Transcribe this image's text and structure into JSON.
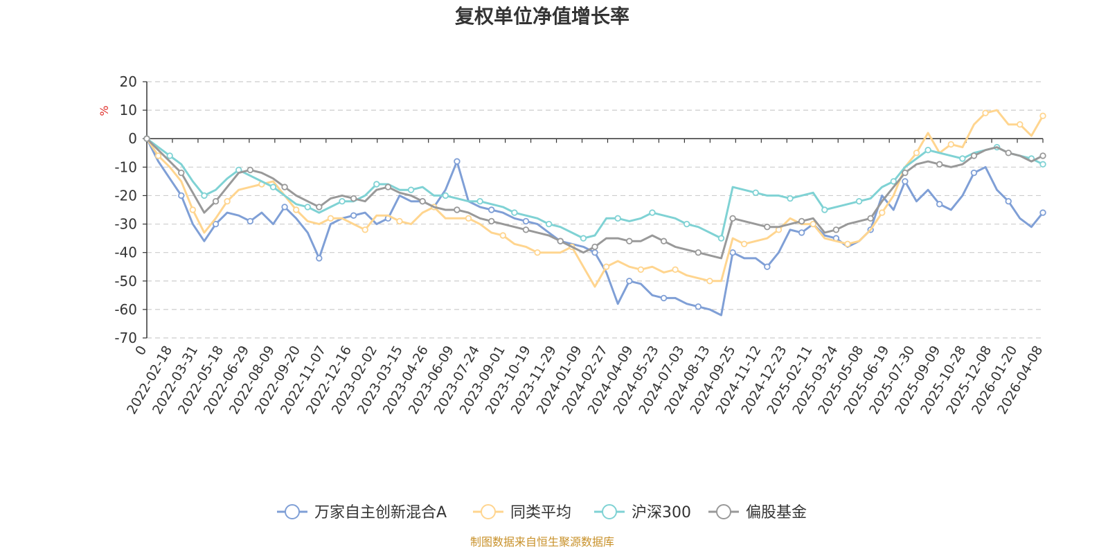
{
  "chart_data": {
    "type": "line",
    "title": "复权单位净值增长率",
    "ylabel": "%",
    "xlabel": "",
    "ylim": [
      -70,
      20
    ],
    "y_ticks": [
      20,
      10,
      0,
      -10,
      -20,
      -30,
      -40,
      -50,
      -60,
      -70
    ],
    "x_tick_labels": [
      "0",
      "2022-02-18",
      "2022-03-31",
      "2022-05-18",
      "2022-06-29",
      "2022-08-09",
      "2022-09-20",
      "2022-11-07",
      "2022-12-16",
      "2023-02-02",
      "2023-03-15",
      "2023-04-26",
      "2023-06-09",
      "2023-07-24",
      "2023-09-01",
      "2023-10-19",
      "2023-11-29",
      "2024-01-09",
      "2024-02-27",
      "2024-04-09",
      "2024-05-23",
      "2024-07-03",
      "2024-08-13",
      "2024-09-25",
      "2024-11-12",
      "2024-12-23",
      "2025-02-11",
      "2025-03-24",
      "2025-05-08",
      "2025-06-19",
      "2025-07-30",
      "2025-09-09",
      "2025-10-28",
      "2025-12-08",
      "2026-01-20",
      "2026-04-08"
    ],
    "grid": true,
    "legend_position": "bottom",
    "series": [
      {
        "name": "万家自主创新混合A",
        "color": "#7f9fd6",
        "values": [
          0,
          -8,
          -14,
          -20,
          -30,
          -36,
          -30,
          -26,
          -27,
          -29,
          -26,
          -30,
          -24,
          -28,
          -33,
          -42,
          -30,
          -28,
          -27,
          -26,
          -30,
          -28,
          -20,
          -22,
          -22,
          -24,
          -18,
          -8,
          -22,
          -24,
          -25,
          -26,
          -28,
          -29,
          -30,
          -33,
          -36,
          -37,
          -38,
          -40,
          -47,
          -58,
          -50,
          -51,
          -55,
          -56,
          -56,
          -58,
          -59,
          -60,
          -62,
          -40,
          -42,
          -42,
          -45,
          -40,
          -32,
          -33,
          -30,
          -34,
          -35,
          -38,
          -36,
          -32,
          -20,
          -25,
          -15,
          -22,
          -18,
          -23,
          -25,
          -20,
          -12,
          -10,
          -18,
          -22,
          -28,
          -31,
          -26
        ]
      },
      {
        "name": "同类平均",
        "color": "#ffd58f",
        "values": [
          0,
          -6,
          -10,
          -15,
          -25,
          -33,
          -28,
          -22,
          -18,
          -17,
          -16,
          -15,
          -20,
          -25,
          -29,
          -30,
          -28,
          -28,
          -30,
          -32,
          -27,
          -27,
          -29,
          -30,
          -26,
          -24,
          -28,
          -28,
          -28,
          -30,
          -33,
          -34,
          -37,
          -38,
          -40,
          -40,
          -40,
          -38,
          -45,
          -52,
          -45,
          -43,
          -45,
          -46,
          -45,
          -47,
          -46,
          -48,
          -49,
          -50,
          -50,
          -35,
          -37,
          -36,
          -35,
          -32,
          -28,
          -30,
          -30,
          -35,
          -36,
          -37,
          -36,
          -32,
          -26,
          -20,
          -10,
          -5,
          2,
          -5,
          -2,
          -3,
          5,
          9,
          10,
          5,
          5,
          1,
          8
        ]
      },
      {
        "name": "沪深300",
        "color": "#7fd2d4",
        "values": [
          0,
          -3,
          -6,
          -9,
          -15,
          -20,
          -18,
          -14,
          -11,
          -13,
          -15,
          -17,
          -20,
          -23,
          -24,
          -26,
          -24,
          -22,
          -22,
          -20,
          -16,
          -16,
          -18,
          -18,
          -17,
          -20,
          -20,
          -21,
          -22,
          -22,
          -23,
          -24,
          -26,
          -27,
          -28,
          -30,
          -31,
          -33,
          -35,
          -34,
          -28,
          -28,
          -29,
          -28,
          -26,
          -27,
          -28,
          -30,
          -31,
          -33,
          -35,
          -17,
          -18,
          -19,
          -20,
          -20,
          -21,
          -20,
          -19,
          -25,
          -24,
          -23,
          -22,
          -21,
          -17,
          -15,
          -10,
          -7,
          -4,
          -5,
          -6,
          -7,
          -5,
          -4,
          -3,
          -5,
          -6,
          -7,
          -9
        ]
      },
      {
        "name": "偏股基金",
        "color": "#999999",
        "values": [
          0,
          -4,
          -8,
          -12,
          -19,
          -26,
          -22,
          -17,
          -12,
          -11,
          -12,
          -14,
          -17,
          -20,
          -22,
          -24,
          -21,
          -20,
          -21,
          -22,
          -18,
          -17,
          -19,
          -20,
          -22,
          -24,
          -25,
          -25,
          -26,
          -28,
          -29,
          -30,
          -31,
          -32,
          -33,
          -34,
          -36,
          -38,
          -40,
          -38,
          -35,
          -35,
          -36,
          -36,
          -34,
          -36,
          -38,
          -39,
          -40,
          -41,
          -42,
          -28,
          -29,
          -30,
          -31,
          -31,
          -30,
          -29,
          -28,
          -33,
          -32,
          -30,
          -29,
          -28,
          -22,
          -17,
          -12,
          -9,
          -8,
          -9,
          -10,
          -9,
          -6,
          -4,
          -3,
          -5,
          -6,
          -8,
          -6
        ]
      }
    ],
    "source_note": "制图数据来自恒生聚源数据库"
  }
}
